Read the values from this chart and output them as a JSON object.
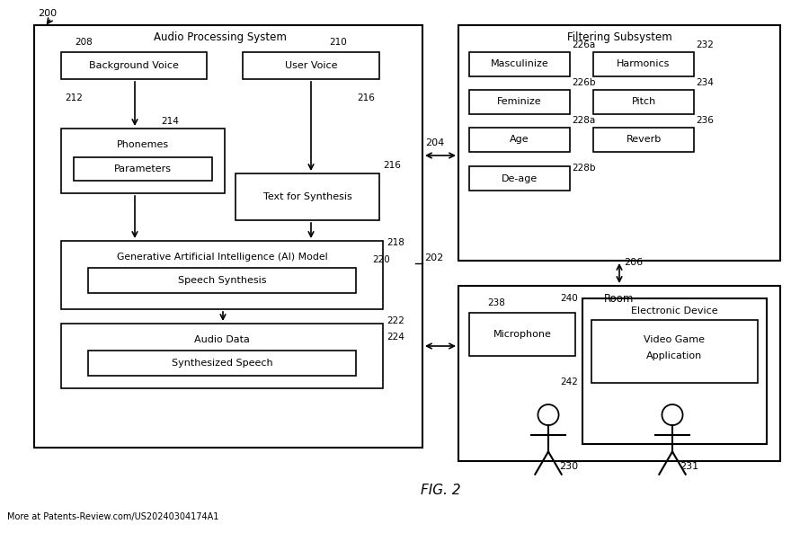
{
  "bg_color": "#ffffff",
  "fig_width": 8.8,
  "fig_height": 5.93,
  "ref_200": "200",
  "ref_202": "202",
  "ref_204": "204",
  "ref_206": "206",
  "ref_208": "208",
  "ref_210": "210",
  "ref_212": "212",
  "ref_214": "214",
  "ref_216": "216",
  "ref_218": "218",
  "ref_220": "220",
  "ref_222": "222",
  "ref_224": "224",
  "ref_226a": "226a",
  "ref_226b": "226b",
  "ref_228a": "228a",
  "ref_228b": "228b",
  "ref_230": "230",
  "ref_231": "231",
  "ref_232": "232",
  "ref_234": "234",
  "ref_236": "236",
  "ref_238": "238",
  "ref_240": "240",
  "ref_242": "242",
  "footer_text": "More at Patents-Review.com/US20240304174A1"
}
